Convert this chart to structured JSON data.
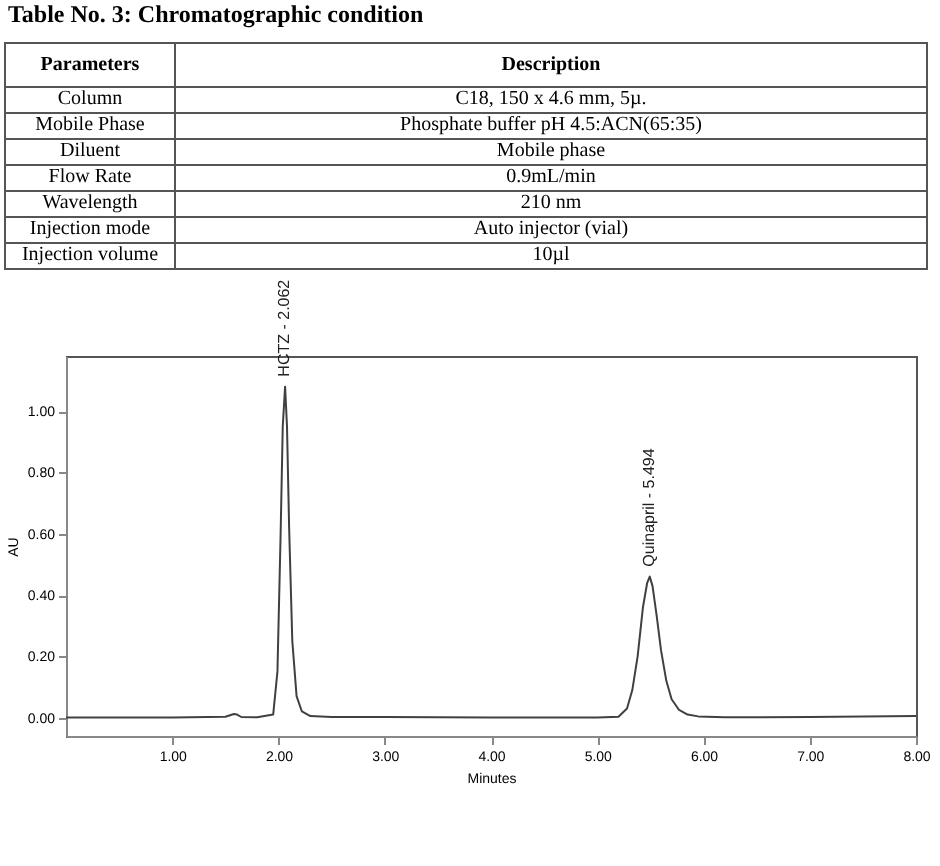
{
  "chart_data": [
    {
      "type": "other",
      "title": "Table No. 3: Chromatographic condition",
      "annotations": [
        "Parameters",
        "Description",
        "Column",
        "C18, 150 x 4.6 mm, 5µ.",
        "Mobile Phase",
        "Phosphate buffer pH 4.5:ACN(65:35)",
        "Diluent",
        "Mobile phase",
        "Flow Rate",
        "0.9mL/min",
        "Wavelength",
        "210 nm",
        "Injection mode",
        "Auto injector (vial)",
        "Injection volume",
        "10µl"
      ]
    },
    {
      "type": "line",
      "xlabel": "Minutes",
      "ylabel": "AU",
      "xlim": [
        0,
        8
      ],
      "ylim": [
        -0.06,
        1.18
      ],
      "xticks": [
        {
          "value": 1,
          "label": "1.00"
        },
        {
          "value": 2,
          "label": "2.00"
        },
        {
          "value": 3,
          "label": "3.00"
        },
        {
          "value": 4,
          "label": "4.00"
        },
        {
          "value": 5,
          "label": "5.00"
        },
        {
          "value": 6,
          "label": "6.00"
        },
        {
          "value": 7,
          "label": "7.00"
        },
        {
          "value": 8,
          "label": "8.00"
        }
      ],
      "yticks": [
        {
          "value": 0,
          "label": "0.00"
        },
        {
          "value": 0.2,
          "label": "0.20"
        },
        {
          "value": 0.4,
          "label": "0.40"
        },
        {
          "value": 0.6,
          "label": "0.60"
        },
        {
          "value": 0.8,
          "label": "0.80"
        },
        {
          "value": 1,
          "label": "1.00"
        }
      ],
      "grid": false,
      "series": [
        {
          "color": "#404040",
          "x": [
            0,
            0.5,
            1.0,
            1.5,
            1.58,
            1.61,
            1.65,
            1.8,
            1.95,
            1.99,
            2.02,
            2.04,
            2.062,
            2.08,
            2.1,
            2.13,
            2.17,
            2.22,
            2.3,
            2.5,
            3.0,
            4.0,
            5.0,
            5.2,
            5.28,
            5.33,
            5.38,
            5.43,
            5.47,
            5.494,
            5.52,
            5.56,
            5.6,
            5.65,
            5.7,
            5.77,
            5.85,
            5.95,
            6.2,
            7.0,
            8.0
          ],
          "values": [
            0,
            0,
            0,
            0.003,
            0.012,
            0.01,
            0.002,
            0.001,
            0.01,
            0.15,
            0.6,
            0.95,
            1.08,
            0.95,
            0.62,
            0.25,
            0.07,
            0.02,
            0.005,
            0.002,
            0.002,
            0,
            0,
            0.003,
            0.03,
            0.09,
            0.2,
            0.36,
            0.44,
            0.46,
            0.43,
            0.33,
            0.22,
            0.12,
            0.06,
            0.025,
            0.01,
            0.004,
            0.001,
            0.002,
            0.005
          ]
        }
      ],
      "annotations": [
        {
          "text": "HCTZ - 2.062",
          "x": 2.062,
          "y": 1.08
        },
        {
          "text": "Quinapril - 5.494",
          "x": 5.494,
          "y": 0.46
        }
      ]
    }
  ]
}
